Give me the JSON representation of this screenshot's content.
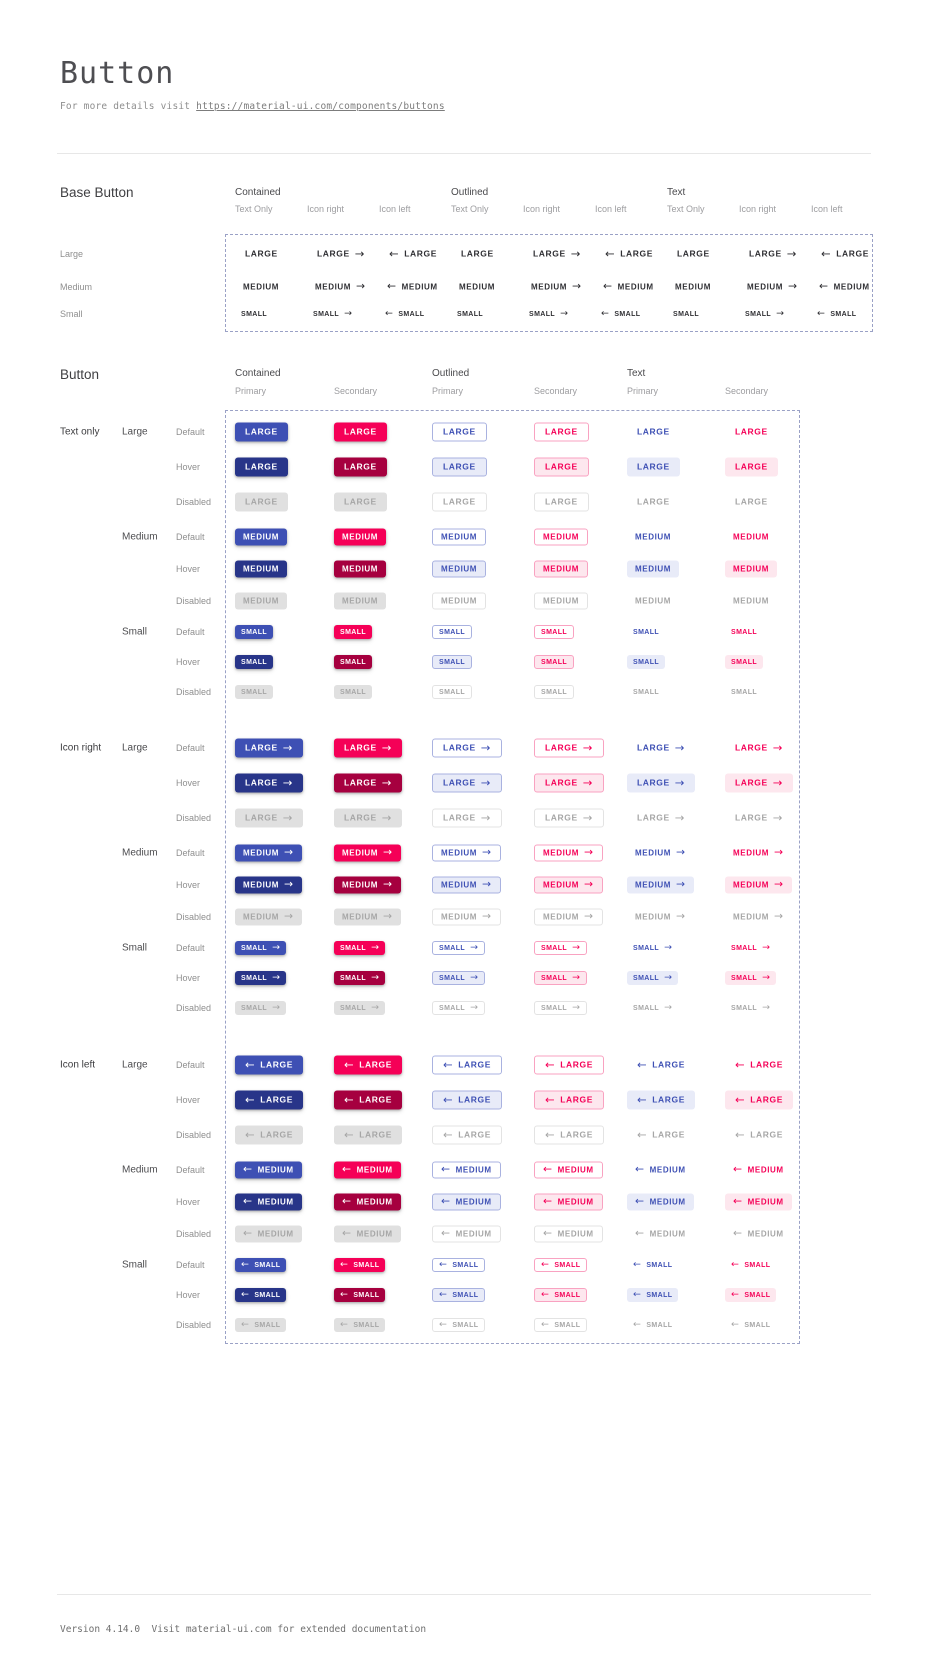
{
  "page": {
    "title": "Button",
    "subtitle_prefix": "For more details visit ",
    "subtitle_link": "https://material-ui.com/components/buttons",
    "footer": "Version 4.14.0  Visit material-ui.com for extended documentation"
  },
  "colors": {
    "primary": "#3e50b4",
    "primary_hover": "#283589",
    "secondary": "#f50057",
    "secondary_hover": "#a6003f",
    "disabled_bg": "#e0e0e0",
    "disabled_text": "#a6a6a6",
    "outlined_primary_border": "#a9b2e0",
    "outlined_secondary_border": "#f9a2c1",
    "primary_tint": "#e8ebf8",
    "secondary_tint": "#fde7ee",
    "dashed_border": "#9aa1c6",
    "base_text": "#2f2f33"
  },
  "icons": {
    "arrow_right": "→",
    "arrow_left": "←"
  },
  "base_button": {
    "heading": "Base Button",
    "variants": [
      "Contained",
      "Outlined",
      "Text"
    ],
    "icon_modes": [
      "Text Only",
      "Icon right",
      "Icon left"
    ],
    "sizes": [
      "Large",
      "Medium",
      "Small"
    ],
    "button_labels": {
      "Large": "LARGE",
      "Medium": "MEDIUM",
      "Small": "SMALL"
    }
  },
  "button_section": {
    "heading": "Button",
    "variants": [
      "Contained",
      "Outlined",
      "Text"
    ],
    "color_names": [
      "Primary",
      "Secondary"
    ],
    "icon_groups": [
      "Text only",
      "Icon right",
      "Icon left"
    ],
    "sizes": [
      "Large",
      "Medium",
      "Small"
    ],
    "states": [
      "Default",
      "Hover",
      "Disabled"
    ],
    "button_labels": {
      "Large": "LARGE",
      "Medium": "MEDIUM",
      "Small": "SMALL"
    }
  }
}
